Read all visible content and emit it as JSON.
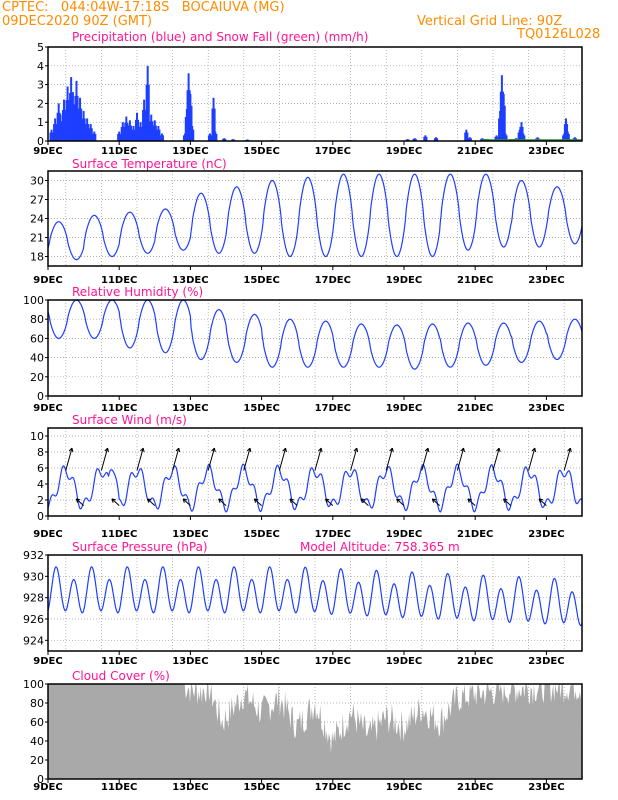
{
  "header": {
    "line1": "CPTEC:   044:04W-17:18S   BOCAIUVA (MG)",
    "line2": "09DEC2020 90Z (GMT)",
    "grid_note": "Vertical Grid Line: 90Z",
    "run_code": "TQ0126L028",
    "color": "#ff8c00"
  },
  "chart_data": [
    {
      "type": "bar",
      "title": "Precipitation (blue) and Snow Fall (green) (mm/h)",
      "title_color": "#ff1493",
      "x_tick_labels": [
        "9DEC",
        "11DEC",
        "13DEC",
        "15DEC",
        "17DEC",
        "19DEC",
        "21DEC",
        "23DEC"
      ],
      "x_range_days": [
        9,
        24
      ],
      "ylim": [
        0,
        5
      ],
      "y_ticks": [
        0,
        1,
        2,
        3,
        4,
        5
      ],
      "series": [
        {
          "color": "#1f3fff",
          "values_by_day": [
            [
              9.1,
              0.6
            ],
            [
              9.2,
              1.2
            ],
            [
              9.3,
              2.0
            ],
            [
              9.35,
              1.4
            ],
            [
              9.45,
              2.2
            ],
            [
              9.55,
              2.9
            ],
            [
              9.65,
              3.4
            ],
            [
              9.7,
              2.6
            ],
            [
              9.8,
              3.2
            ],
            [
              9.9,
              2.3
            ],
            [
              10.0,
              1.6
            ],
            [
              10.1,
              1.2
            ],
            [
              10.2,
              0.9
            ],
            [
              10.3,
              0.5
            ],
            [
              11.0,
              0.5
            ],
            [
              11.1,
              1.0
            ],
            [
              11.2,
              1.3
            ],
            [
              11.3,
              1.1
            ],
            [
              11.4,
              0.8
            ],
            [
              11.5,
              1.5
            ],
            [
              11.6,
              1.0
            ],
            [
              11.7,
              2.2
            ],
            [
              11.8,
              4.0
            ],
            [
              11.9,
              1.4
            ],
            [
              12.0,
              1.1
            ],
            [
              12.1,
              0.8
            ],
            [
              12.2,
              0.4
            ],
            [
              12.85,
              0.4
            ],
            [
              12.9,
              1.7
            ],
            [
              12.95,
              3.6
            ],
            [
              13.0,
              2.5
            ],
            [
              13.05,
              0.8
            ],
            [
              13.55,
              0.4
            ],
            [
              13.65,
              2.3
            ],
            [
              13.7,
              0.5
            ],
            [
              13.95,
              0.15
            ],
            [
              14.2,
              0.1
            ],
            [
              14.6,
              0.08
            ],
            [
              15.3,
              0.05
            ],
            [
              17.5,
              0.05
            ],
            [
              19.1,
              0.1
            ],
            [
              19.3,
              0.15
            ],
            [
              19.6,
              0.3
            ],
            [
              19.9,
              0.2
            ],
            [
              20.75,
              0.6
            ],
            [
              20.85,
              0.2
            ],
            [
              21.2,
              0.15
            ],
            [
              21.6,
              0.3
            ],
            [
              21.7,
              1.6
            ],
            [
              21.75,
              3.5
            ],
            [
              21.8,
              2.5
            ],
            [
              21.85,
              0.4
            ],
            [
              22.15,
              0.15
            ],
            [
              22.25,
              0.6
            ],
            [
              22.3,
              1.0
            ],
            [
              22.35,
              0.4
            ],
            [
              22.75,
              0.2
            ],
            [
              23.5,
              0.4
            ],
            [
              23.55,
              1.2
            ],
            [
              23.6,
              0.5
            ],
            [
              23.8,
              0.2
            ]
          ]
        },
        {
          "color": "#2e8b2e",
          "values_by_day": [
            [
              21.3,
              0.05
            ],
            [
              22.0,
              0.08
            ],
            [
              23.6,
              0.1
            ]
          ]
        }
      ]
    },
    {
      "type": "line",
      "title": "Surface Temperature (nC)",
      "title_color": "#ff1493",
      "x_tick_labels": [
        "9DEC",
        "11DEC",
        "13DEC",
        "15DEC",
        "17DEC",
        "19DEC",
        "21DEC",
        "23DEC"
      ],
      "ylim": [
        16.5,
        31.5
      ],
      "y_ticks": [
        18,
        21,
        24,
        27,
        30
      ],
      "series": [
        {
          "color": "#1f3fff",
          "daily_min": [
            17.5,
            18.0,
            18.5,
            19.0,
            18.5,
            18.5,
            18.0,
            18.0,
            18.0,
            18.0,
            18.0,
            19.0,
            19.5,
            19.5,
            20.0,
            20.5
          ],
          "daily_max": [
            null,
            24.5,
            25.0,
            25.5,
            28.0,
            29.0,
            30.0,
            30.5,
            31.0,
            31.0,
            31.0,
            31.0,
            31.0,
            30.0,
            29.0,
            28.0
          ]
        }
      ]
    },
    {
      "type": "line",
      "title": "Relative Humidity (%)",
      "title_color": "#ff1493",
      "x_tick_labels": [
        "9DEC",
        "11DEC",
        "13DEC",
        "15DEC",
        "17DEC",
        "19DEC",
        "21DEC",
        "23DEC"
      ],
      "ylim": [
        0,
        100
      ],
      "y_ticks": [
        0,
        20,
        40,
        60,
        80,
        100
      ],
      "series": [
        {
          "color": "#1f3fff",
          "daily_min": [
            60,
            60,
            50,
            45,
            38,
            35,
            30,
            30,
            30,
            30,
            28,
            30,
            32,
            35,
            38,
            40
          ],
          "daily_max": [
            100,
            100,
            100,
            100,
            90,
            85,
            80,
            78,
            75,
            74,
            75,
            76,
            76,
            78,
            80,
            82
          ]
        }
      ]
    },
    {
      "type": "line",
      "title": "Surface Wind (m/s)",
      "title_color": "#ff1493",
      "x_tick_labels": [
        "9DEC",
        "11DEC",
        "13DEC",
        "15DEC",
        "17DEC",
        "19DEC",
        "21DEC",
        "23DEC"
      ],
      "ylim": [
        0,
        11
      ],
      "y_ticks": [
        0,
        2,
        4,
        6,
        8,
        10
      ],
      "series": [
        {
          "color": "#1f3fff",
          "name": "speed"
        }
      ],
      "arrows": "wind vectors drawn on curve (black)"
    },
    {
      "type": "line",
      "title": "Surface Pressure (hPa)",
      "subtitle": "Model Altitude: 758.365  m",
      "title_color": "#ff1493",
      "x_tick_labels": [
        "9DEC",
        "11DEC",
        "13DEC",
        "15DEC",
        "17DEC",
        "19DEC",
        "21DEC",
        "23DEC"
      ],
      "ylim": [
        923,
        932
      ],
      "y_ticks": [
        924,
        926,
        928,
        930,
        932
      ],
      "series": [
        {
          "color": "#1f3fff"
        }
      ]
    },
    {
      "type": "bar",
      "title": "Cloud Cover (%)",
      "title_color": "#ff1493",
      "x_tick_labels": [
        "9DEC",
        "11DEC",
        "13DEC",
        "15DEC",
        "17DEC",
        "19DEC",
        "21DEC",
        "23DEC"
      ],
      "ylim": [
        0,
        100
      ],
      "y_ticks": [
        0,
        20,
        40,
        60,
        80,
        100
      ],
      "series": [
        {
          "color": "#a9a9a9",
          "segments": [
            [
              9.0,
              100
            ],
            [
              12.8,
              100
            ],
            [
              13.0,
              95
            ],
            [
              13.3,
              92
            ],
            [
              13.5,
              98
            ],
            [
              13.9,
              60
            ],
            [
              14.5,
              90
            ],
            [
              15.0,
              70
            ],
            [
              15.5,
              85
            ],
            [
              16.0,
              55
            ],
            [
              16.5,
              80
            ],
            [
              17.0,
              40
            ],
            [
              17.5,
              70
            ],
            [
              18.0,
              45
            ],
            [
              18.5,
              65
            ],
            [
              19.0,
              55
            ],
            [
              19.5,
              75
            ],
            [
              20.0,
              60
            ],
            [
              20.5,
              85
            ],
            [
              21.0,
              90
            ],
            [
              22.0,
              95
            ],
            [
              23.0,
              97
            ],
            [
              24.0,
              98
            ]
          ]
        }
      ]
    }
  ]
}
